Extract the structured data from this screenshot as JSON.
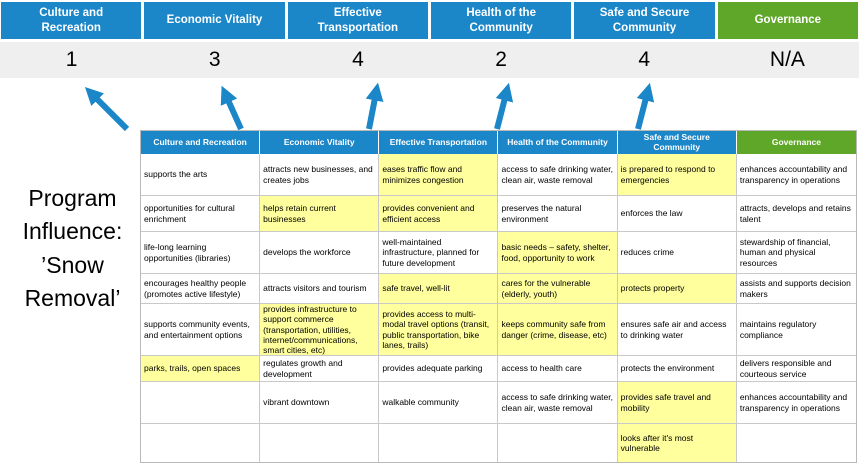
{
  "title": "Program Influence: ’Snow Removal’",
  "colors": {
    "blue": "#1B86C8",
    "green": "#5EA728",
    "highlight": "#FFFF9E",
    "score_band": "#EFEFEF",
    "arrow": "#1B86C8"
  },
  "pillars": [
    {
      "label": "Culture and Recreation",
      "score": "1",
      "theme": "blue"
    },
    {
      "label": "Economic Vitality",
      "score": "3",
      "theme": "blue"
    },
    {
      "label": "Effective Transportation",
      "score": "4",
      "theme": "blue"
    },
    {
      "label": "Health of the Community",
      "score": "2",
      "theme": "blue"
    },
    {
      "label": "Safe and Secure Community",
      "score": "4",
      "theme": "blue"
    },
    {
      "label": "Governance",
      "score": "N/A",
      "theme": "green"
    }
  ],
  "table": {
    "headers": [
      {
        "label": "Culture and Recreation",
        "theme": "blue"
      },
      {
        "label": "Economic Vitality",
        "theme": "blue"
      },
      {
        "label": "Effective Transportation",
        "theme": "blue"
      },
      {
        "label": "Health of the Community",
        "theme": "blue"
      },
      {
        "label": "Safe and Secure Community",
        "theme": "blue"
      },
      {
        "label": "Governance",
        "theme": "green"
      }
    ],
    "rows": [
      [
        {
          "text": "supports the arts",
          "highlighted": false
        },
        {
          "text": "attracts new businesses, and creates jobs",
          "highlighted": false
        },
        {
          "text": "eases traffic flow and minimizes congestion",
          "highlighted": true
        },
        {
          "text": "access to safe drinking water, clean air, waste removal",
          "highlighted": false
        },
        {
          "text": "is prepared to respond to emergencies",
          "highlighted": true
        },
        {
          "text": "enhances accountability and transparency in operations",
          "highlighted": false
        }
      ],
      [
        {
          "text": "opportunities for cultural enrichment",
          "highlighted": false
        },
        {
          "text": "helps retain current businesses",
          "highlighted": true
        },
        {
          "text": "provides convenient and efficient access",
          "highlighted": true
        },
        {
          "text": "preserves the natural environment",
          "highlighted": false
        },
        {
          "text": "enforces the law",
          "highlighted": false
        },
        {
          "text": "attracts, develops and retains talent",
          "highlighted": false
        }
      ],
      [
        {
          "text": "life-long learning opportunities (libraries)",
          "highlighted": false
        },
        {
          "text": "develops the workforce",
          "highlighted": false
        },
        {
          "text": "well-maintained infrastructure, planned for future development",
          "highlighted": false
        },
        {
          "text": "basic needs – safety, shelter, food, opportunity to work",
          "highlighted": true
        },
        {
          "text": "reduces crime",
          "highlighted": false
        },
        {
          "text": "stewardship of financial, human and physical resources",
          "highlighted": false
        }
      ],
      [
        {
          "text": "encourages healthy people (promotes active lifestyle)",
          "highlighted": false
        },
        {
          "text": "attracts visitors and tourism",
          "highlighted": false
        },
        {
          "text": "safe travel, well-lit",
          "highlighted": true
        },
        {
          "text": "cares for the vulnerable (elderly, youth)",
          "highlighted": true
        },
        {
          "text": "protects property",
          "highlighted": true
        },
        {
          "text": "assists and supports decision makers",
          "highlighted": false
        }
      ],
      [
        {
          "text": "supports community events, and entertainment options",
          "highlighted": false
        },
        {
          "text": "provides infrastructure to support commerce (transportation, utilities, internet/communications, smart cities, etc)",
          "highlighted": true
        },
        {
          "text": "provides access to multi-modal travel options (transit, public transportation, bike lanes, trails)",
          "highlighted": true
        },
        {
          "text": "keeps community safe from danger (crime, disease, etc)",
          "highlighted": true
        },
        {
          "text": "ensures safe air and access to drinking water",
          "highlighted": false
        },
        {
          "text": "maintains regulatory compliance",
          "highlighted": false
        }
      ],
      [
        {
          "text": "parks, trails, open spaces",
          "highlighted": true
        },
        {
          "text": "regulates growth and development",
          "highlighted": false
        },
        {
          "text": "provides adequate parking",
          "highlighted": false
        },
        {
          "text": "access to health care",
          "highlighted": false
        },
        {
          "text": "protects the environment",
          "highlighted": false
        },
        {
          "text": "delivers responsible and courteous service",
          "highlighted": false
        }
      ],
      [
        {
          "text": "",
          "highlighted": false
        },
        {
          "text": "vibrant downtown",
          "highlighted": false
        },
        {
          "text": "walkable community",
          "highlighted": false
        },
        {
          "text": "access to safe drinking water, clean air, waste removal",
          "highlighted": false
        },
        {
          "text": "provides safe travel and mobility",
          "highlighted": true
        },
        {
          "text": "enhances accountability and transparency in operations",
          "highlighted": false
        }
      ],
      [
        {
          "text": "",
          "highlighted": false
        },
        {
          "text": "",
          "highlighted": false
        },
        {
          "text": "",
          "highlighted": false
        },
        {
          "text": "",
          "highlighted": false
        },
        {
          "text": "looks after it's most vulnerable",
          "highlighted": true
        },
        {
          "text": "",
          "highlighted": false
        }
      ]
    ]
  }
}
